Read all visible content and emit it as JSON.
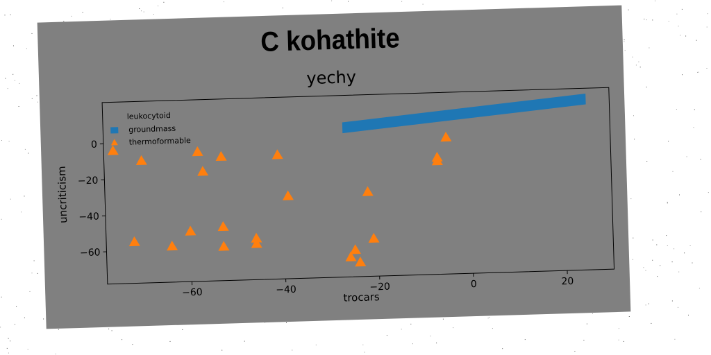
{
  "figure": {
    "title": "C kohathite",
    "subtitle": "yechy",
    "panel_color": "#808080",
    "axes_color": "#000000"
  },
  "chart_data": {
    "type": "scatter",
    "title": "yechy",
    "xlabel": "trocars",
    "ylabel": "uncriticism",
    "xlim": [
      -78,
      30
    ],
    "ylim": [
      -78,
      23
    ],
    "xticks": [
      -60,
      -40,
      -20,
      0,
      20
    ],
    "yticks": [
      0,
      -20,
      -40,
      -60
    ],
    "grid": false,
    "legend": {
      "title": "leukocytoid",
      "placement": "top-left",
      "entries": [
        "groundmass",
        "thermoformable"
      ]
    },
    "series": [
      {
        "name": "groundmass",
        "kind": "band",
        "color": "#1f77b4",
        "x": [
          -27,
          25
        ],
        "y_low": [
          2,
          14
        ],
        "y_high": [
          8,
          20
        ]
      },
      {
        "name": "thermoformable",
        "kind": "scatter",
        "marker": "triangle",
        "color": "#ff7f0e",
        "points": [
          [
            -76,
            -4
          ],
          [
            -70,
            -10
          ],
          [
            -58,
            -6
          ],
          [
            -57,
            -17
          ],
          [
            -53,
            -9
          ],
          [
            -41,
            -9
          ],
          [
            -39,
            -32
          ],
          [
            -22,
            -31
          ],
          [
            -7,
            -13
          ],
          [
            -7,
            -15
          ],
          [
            -5,
            -2
          ],
          [
            -72,
            -55
          ],
          [
            -64,
            -58
          ],
          [
            -60,
            -50
          ],
          [
            -53,
            -48
          ],
          [
            -53,
            -59
          ],
          [
            -46,
            -55
          ],
          [
            -46,
            -58
          ],
          [
            -25,
            -63
          ],
          [
            -26,
            -67
          ],
          [
            -24,
            -70
          ],
          [
            -21,
            -57
          ]
        ]
      }
    ]
  }
}
